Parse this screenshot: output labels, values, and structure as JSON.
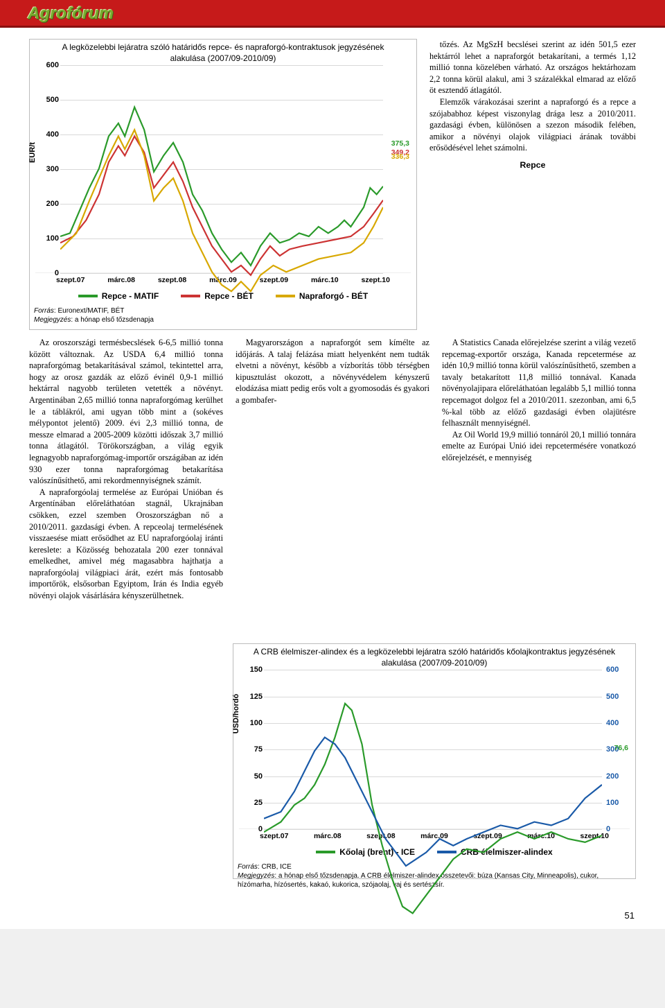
{
  "brand": "Agrofórum",
  "page_number": "51",
  "chart1": {
    "type": "line",
    "title": "A legközelebbi lejáratra szóló határidős repce- és napraforgó-kontraktusok jegyzésének alakulása (2007/09-2010/09)",
    "ylabel": "EUR/t",
    "ylim": [
      0,
      600
    ],
    "ytick_step": 100,
    "yticks": [
      "0",
      "100",
      "200",
      "300",
      "400",
      "500",
      "600"
    ],
    "xlabels": [
      "szept.07",
      "márc.08",
      "szept.08",
      "márc.09",
      "szept.09",
      "márc.10",
      "szept.10"
    ],
    "series": [
      {
        "name": "Repce - MATIF",
        "color": "#2a9a2a",
        "end_value": "375,3",
        "end_pct": 0.625,
        "points": [
          [
            0,
            0.47
          ],
          [
            0.03,
            0.48
          ],
          [
            0.06,
            0.55
          ],
          [
            0.09,
            0.62
          ],
          [
            0.12,
            0.68
          ],
          [
            0.15,
            0.78
          ],
          [
            0.18,
            0.82
          ],
          [
            0.2,
            0.78
          ],
          [
            0.23,
            0.87
          ],
          [
            0.26,
            0.8
          ],
          [
            0.29,
            0.67
          ],
          [
            0.32,
            0.72
          ],
          [
            0.35,
            0.76
          ],
          [
            0.38,
            0.7
          ],
          [
            0.41,
            0.6
          ],
          [
            0.44,
            0.55
          ],
          [
            0.47,
            0.48
          ],
          [
            0.5,
            0.43
          ],
          [
            0.53,
            0.39
          ],
          [
            0.56,
            0.42
          ],
          [
            0.59,
            0.38
          ],
          [
            0.62,
            0.44
          ],
          [
            0.65,
            0.48
          ],
          [
            0.68,
            0.45
          ],
          [
            0.71,
            0.46
          ],
          [
            0.74,
            0.48
          ],
          [
            0.77,
            0.47
          ],
          [
            0.8,
            0.5
          ],
          [
            0.83,
            0.48
          ],
          [
            0.86,
            0.5
          ],
          [
            0.88,
            0.52
          ],
          [
            0.9,
            0.5
          ],
          [
            0.92,
            0.53
          ],
          [
            0.94,
            0.56
          ],
          [
            0.96,
            0.62
          ],
          [
            0.98,
            0.6
          ],
          [
            1.0,
            0.625
          ]
        ]
      },
      {
        "name": "Repce - BÉT",
        "color": "#cc3333",
        "end_value": "349,2",
        "end_pct": 0.582,
        "points": [
          [
            0,
            0.45
          ],
          [
            0.04,
            0.47
          ],
          [
            0.08,
            0.52
          ],
          [
            0.12,
            0.6
          ],
          [
            0.15,
            0.7
          ],
          [
            0.18,
            0.75
          ],
          [
            0.2,
            0.72
          ],
          [
            0.23,
            0.78
          ],
          [
            0.26,
            0.73
          ],
          [
            0.29,
            0.62
          ],
          [
            0.32,
            0.66
          ],
          [
            0.35,
            0.7
          ],
          [
            0.38,
            0.64
          ],
          [
            0.41,
            0.56
          ],
          [
            0.44,
            0.5
          ],
          [
            0.47,
            0.44
          ],
          [
            0.5,
            0.4
          ],
          [
            0.53,
            0.36
          ],
          [
            0.56,
            0.38
          ],
          [
            0.59,
            0.35
          ],
          [
            0.62,
            0.4
          ],
          [
            0.65,
            0.44
          ],
          [
            0.68,
            0.41
          ],
          [
            0.71,
            0.43
          ],
          [
            0.75,
            0.44
          ],
          [
            0.8,
            0.45
          ],
          [
            0.85,
            0.46
          ],
          [
            0.9,
            0.47
          ],
          [
            0.94,
            0.5
          ],
          [
            0.97,
            0.54
          ],
          [
            1.0,
            0.582
          ]
        ]
      },
      {
        "name": "Napraforgó - BÉT",
        "color": "#d8a800",
        "end_value": "336,3",
        "end_pct": 0.56,
        "points": [
          [
            0,
            0.43
          ],
          [
            0.05,
            0.48
          ],
          [
            0.09,
            0.58
          ],
          [
            0.12,
            0.65
          ],
          [
            0.15,
            0.72
          ],
          [
            0.18,
            0.78
          ],
          [
            0.2,
            0.74
          ],
          [
            0.23,
            0.8
          ],
          [
            0.26,
            0.72
          ],
          [
            0.29,
            0.58
          ],
          [
            0.32,
            0.62
          ],
          [
            0.35,
            0.65
          ],
          [
            0.38,
            0.58
          ],
          [
            0.41,
            0.48
          ],
          [
            0.44,
            0.42
          ],
          [
            0.47,
            0.36
          ],
          [
            0.5,
            0.32
          ],
          [
            0.53,
            0.3
          ],
          [
            0.56,
            0.33
          ],
          [
            0.59,
            0.3
          ],
          [
            0.62,
            0.35
          ],
          [
            0.66,
            0.38
          ],
          [
            0.7,
            0.36
          ],
          [
            0.75,
            0.38
          ],
          [
            0.8,
            0.4
          ],
          [
            0.85,
            0.41
          ],
          [
            0.9,
            0.42
          ],
          [
            0.94,
            0.45
          ],
          [
            0.97,
            0.5
          ],
          [
            1.0,
            0.56
          ]
        ]
      }
    ],
    "source_label": "Forrás",
    "source": ": Euronext/MATIF, BÉT",
    "note_label": "Megjegyzés",
    "note": ": a hónap első tőzsdenapja",
    "background_color": "#ffffff",
    "grid_color": "#d8d8d8",
    "line_width": 2.2
  },
  "chart2": {
    "type": "line-dual-axis",
    "title": "A CRB élelmiszer-alindex és a legközelebbi lejáratra szóló határidős kőolajkontraktus jegyzésének alakulása (2007/09-2010/09)",
    "ylabel_left": "USD/hordó",
    "ylim_left": [
      0,
      150
    ],
    "yticks_left": [
      "0",
      "25",
      "50",
      "75",
      "100",
      "125",
      "150"
    ],
    "ylim_right": [
      0,
      600
    ],
    "yticks_right": [
      "0",
      "100",
      "200",
      "300",
      "400",
      "500",
      "600"
    ],
    "xlabels": [
      "szept.07",
      "márc.08",
      "szept.08",
      "márc.09",
      "szept.09",
      "márc.10",
      "szept.10"
    ],
    "series": [
      {
        "name": "Kőolaj (brent) - ICE",
        "color": "#2a9a2a",
        "axis": "left",
        "end_value": "76,6",
        "end_pct": 0.51,
        "points": [
          [
            0,
            0.52
          ],
          [
            0.05,
            0.55
          ],
          [
            0.09,
            0.6
          ],
          [
            0.12,
            0.62
          ],
          [
            0.15,
            0.66
          ],
          [
            0.18,
            0.72
          ],
          [
            0.21,
            0.8
          ],
          [
            0.24,
            0.9
          ],
          [
            0.26,
            0.88
          ],
          [
            0.29,
            0.78
          ],
          [
            0.32,
            0.6
          ],
          [
            0.35,
            0.48
          ],
          [
            0.38,
            0.38
          ],
          [
            0.41,
            0.3
          ],
          [
            0.44,
            0.28
          ],
          [
            0.47,
            0.32
          ],
          [
            0.5,
            0.36
          ],
          [
            0.53,
            0.4
          ],
          [
            0.56,
            0.44
          ],
          [
            0.6,
            0.47
          ],
          [
            0.65,
            0.46
          ],
          [
            0.7,
            0.5
          ],
          [
            0.75,
            0.52
          ],
          [
            0.8,
            0.5
          ],
          [
            0.85,
            0.52
          ],
          [
            0.9,
            0.5
          ],
          [
            0.95,
            0.49
          ],
          [
            1.0,
            0.51
          ]
        ]
      },
      {
        "name": "CRB élelmiszer-alindex",
        "color": "#1a5aa8",
        "axis": "right",
        "points": [
          [
            0,
            0.56
          ],
          [
            0.05,
            0.58
          ],
          [
            0.09,
            0.64
          ],
          [
            0.12,
            0.7
          ],
          [
            0.15,
            0.76
          ],
          [
            0.18,
            0.8
          ],
          [
            0.21,
            0.78
          ],
          [
            0.24,
            0.74
          ],
          [
            0.27,
            0.68
          ],
          [
            0.3,
            0.62
          ],
          [
            0.33,
            0.56
          ],
          [
            0.36,
            0.5
          ],
          [
            0.39,
            0.46
          ],
          [
            0.42,
            0.42
          ],
          [
            0.45,
            0.44
          ],
          [
            0.48,
            0.46
          ],
          [
            0.52,
            0.5
          ],
          [
            0.56,
            0.48
          ],
          [
            0.6,
            0.5
          ],
          [
            0.65,
            0.52
          ],
          [
            0.7,
            0.54
          ],
          [
            0.75,
            0.53
          ],
          [
            0.8,
            0.55
          ],
          [
            0.85,
            0.54
          ],
          [
            0.9,
            0.56
          ],
          [
            0.95,
            0.62
          ],
          [
            1.0,
            0.66
          ]
        ]
      }
    ],
    "source_label": "Forrás",
    "source": ": CRB, ICE",
    "note_label": "Megjegyzés",
    "note": ": a hónap első tőzsdenapja. A CRB élelmiszer-alindex összetevői: búza (Kansas City, Minneapolis), cukor, hízómarha, hízósertés, kakaó, kukorica, szójaolaj, vaj és sertészsír.",
    "background_color": "#ffffff",
    "grid_color": "#d8d8d8",
    "line_width": 2.2
  },
  "text": {
    "right_top_p1": "tőzés. Az MgSzH becslései szerint az idén 501,5 ezer hektárról lehet a napraforgót betakarítani, a termés 1,12 millió tonna közelében várható. Az országos hektárhozam 2,2 tonna körül alakul, ami 3 százalékkal elmarad az előző öt esztendő átlagától.",
    "right_top_p2": "Elemzők várakozásai szerint a napraforgó és a repce a szójababhoz képest viszonylag drága lesz a 2010/2011. gazdasági évben, különösen a szezon második felében, amikor a növényi olajok világpiaci árának további erősödésével lehet számolni.",
    "section_head": "Repce",
    "col1_p1": "Az oroszországi termésbecslések 6-6,5 millió tonna között változnak. Az USDA 6,4 millió tonna napraforgómag betakarításával számol, tekintettel arra, hogy az orosz gazdák az előző évinél 0,9-1 millió hektárral nagyobb területen vetették a növényt. Argentinában 2,65 millió tonna napraforgómag kerülhet le a táblákról, ami ugyan több mint a (sokéves mélypontot jelentő) 2009. évi 2,3 millió tonna, de messze elmarad a 2005-2009 közötti időszak 3,7 millió tonna átlagától. Törökországban, a világ egyik legnagyobb napraforgómag-importőr országában az idén 930 ezer tonna napraforgómag betakarítása valószínűsíthető, ami rekordmennyiségnek számít.",
    "col1_p2": "A napraforgóolaj termelése az Európai Unióban és Argentínában előreláthatóan stagnál, Ukrajnában csökken, ezzel szemben Oroszországban nő a 2010/2011. gazdasági évben. A repceolaj termelésének visszaesése miatt erősödhet az EU napraforgóolaj iránti kereslete: a Közösség behozatala 200 ezer tonnával emelkedhet, amivel még magasabbra hajthatja a napraforgóolaj világpiaci árát, ezért más fontosabb importőrök, elsősorban Egyiptom, Irán és India egyéb növényi olajok vásárlására kényszerülhetnek.",
    "col2_p1": "Magyarországon a napraforgót sem kímélte az időjárás. A talaj felázása miatt helyenként nem tudták elvetni a növényt, később a vízborítás több térségben kipusztulást okozott, a növényvédelem kényszerű elodázása miatt pedig erős volt a gyomosodás és gyakori a gombafer-",
    "col3_p1": "A Statistics Canada előrejelzése szerint a világ vezető repcemag-exportőr országa, Kanada repcetermése az idén 10,9 millió tonna körül valószínűsíthető, szemben a tavaly betakarított 11,8 millió tonnával. Kanada növényolajipara előreláthatóan legalább 5,1 millió tonna repcemagot dolgoz fel a 2010/2011. szezonban, ami 6,5 %-kal több az előző gazdasági évben olajütésre felhasznált mennyiségnél.",
    "col3_p2": "Az Oil World 19,9 millió tonnáról 20,1 millió tonnára emelte az Európai Unió idei repcetermésére vonatkozó előrejelzését, e mennyiség"
  }
}
